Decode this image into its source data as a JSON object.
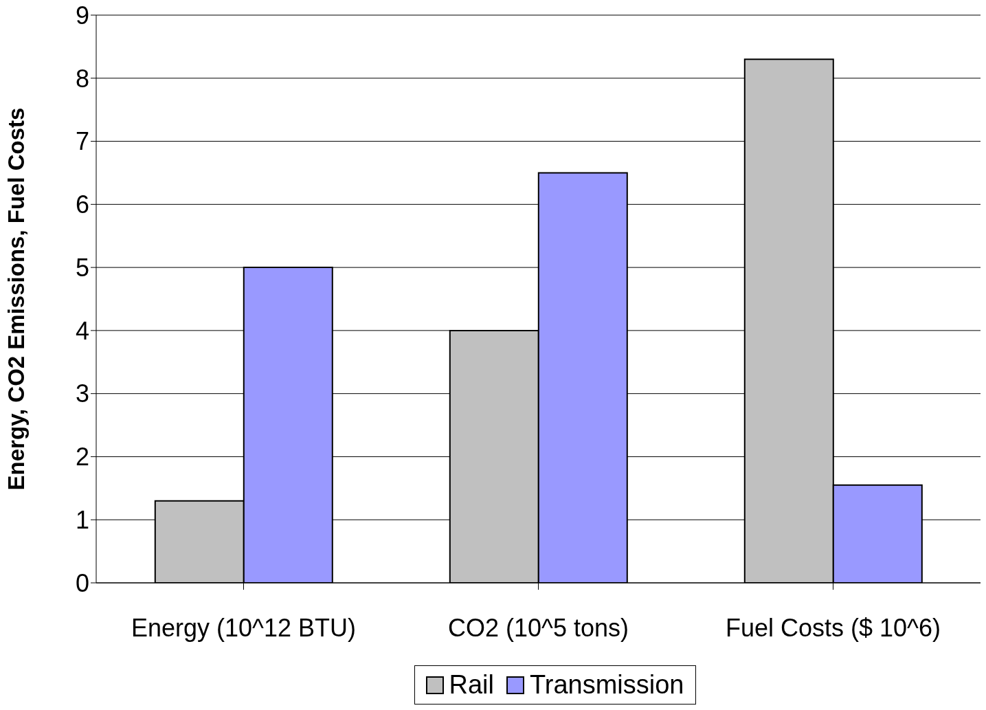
{
  "chart_data": {
    "type": "bar",
    "ylabel": "Energy, CO2 Emissions, Fuel Costs",
    "categories": [
      "Energy (10^12 BTU)",
      "CO2 (10^5 tons)",
      "Fuel Costs ($ 10^6)"
    ],
    "series": [
      {
        "name": "Rail",
        "color": "#c0c0c0",
        "values": [
          1.3,
          4.0,
          8.3
        ]
      },
      {
        "name": "Transmission",
        "color": "#9999ff",
        "values": [
          5.0,
          6.5,
          1.55
        ]
      }
    ],
    "ylim": [
      0,
      9
    ],
    "yticks": [
      0,
      1,
      2,
      3,
      4,
      5,
      6,
      7,
      8,
      9
    ],
    "grid": "y",
    "legend": "bottom"
  }
}
